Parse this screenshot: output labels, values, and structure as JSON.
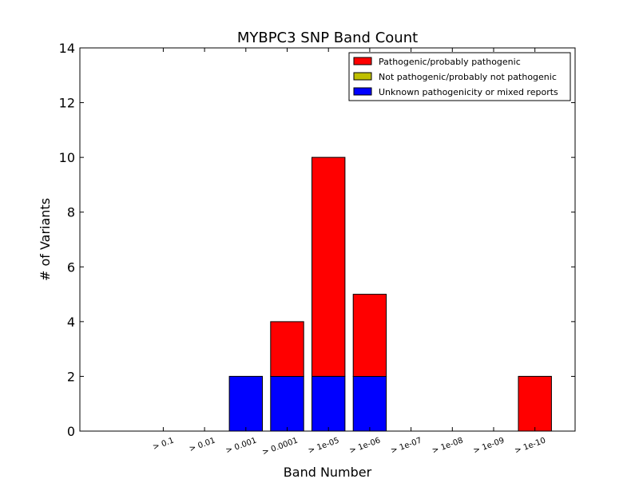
{
  "chart_data": {
    "type": "bar",
    "stacked": true,
    "title": "MYBPC3 SNP Band Count",
    "xlabel": "Band Number",
    "ylabel": "# of Variants",
    "ylim": [
      0,
      14
    ],
    "yticks": [
      0,
      2,
      4,
      6,
      8,
      10,
      12,
      14
    ],
    "categories": [
      "> 0.1",
      "> 0.01",
      "> 0.001",
      "> 0.0001",
      "> 1e-05",
      "> 1e-06",
      "> 1e-07",
      "> 1e-08",
      "> 1e-09",
      "> 1e-10"
    ],
    "series": [
      {
        "name": "Unknown pathogenicity or mixed reports",
        "color": "#0000ff",
        "values": [
          0,
          0,
          2,
          2,
          2,
          2,
          0,
          0,
          0,
          0
        ]
      },
      {
        "name": "Not pathogenic/probably not pathogenic",
        "color": "#bfbf00",
        "values": [
          0,
          0,
          0,
          0,
          0,
          0,
          0,
          0,
          0,
          0
        ]
      },
      {
        "name": "Pathogenic/probably pathogenic",
        "color": "#ff0000",
        "values": [
          0,
          0,
          0,
          2,
          8,
          3,
          0,
          0,
          0,
          2
        ]
      }
    ],
    "legend": {
      "placement": "top-right",
      "order": [
        "Pathogenic/probably pathogenic",
        "Not pathogenic/probably not pathogenic",
        "Unknown pathogenicity or mixed reports"
      ]
    },
    "grid": false
  }
}
